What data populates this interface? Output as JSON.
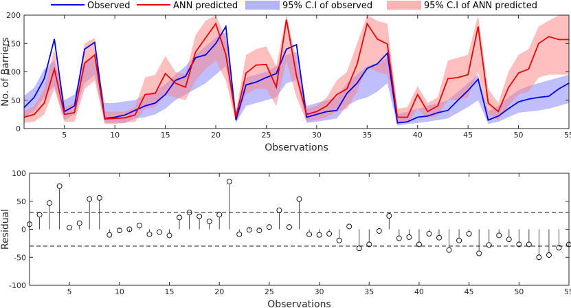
{
  "chart_data": [
    {
      "type": "line",
      "xlabel": "Observations",
      "ylabel": "No. of Barriers",
      "xlim": [
        1,
        55
      ],
      "ylim": [
        0,
        200
      ],
      "xticks": [
        5,
        10,
        15,
        20,
        25,
        30,
        35,
        40,
        45,
        50,
        55
      ],
      "yticks": [
        0,
        50,
        100,
        150,
        200
      ],
      "legend_position": "top",
      "x": [
        1,
        2,
        3,
        4,
        5,
        6,
        7,
        8,
        9,
        10,
        11,
        12,
        13,
        14,
        15,
        16,
        17,
        18,
        19,
        20,
        21,
        22,
        23,
        24,
        25,
        26,
        27,
        28,
        29,
        30,
        31,
        32,
        33,
        34,
        35,
        36,
        37,
        38,
        39,
        40,
        41,
        42,
        43,
        44,
        45,
        46,
        47,
        48,
        49,
        50,
        51,
        52,
        53,
        54,
        55
      ],
      "series": [
        {
          "name": "Observed",
          "color": "#0000ee",
          "values": [
            37,
            55,
            88,
            158,
            30,
            40,
            140,
            152,
            18,
            20,
            24,
            32,
            40,
            45,
            60,
            85,
            92,
            125,
            130,
            150,
            180,
            15,
            77,
            82,
            90,
            97,
            140,
            148,
            20,
            25,
            30,
            32,
            62,
            80,
            106,
            114,
            133,
            10,
            12,
            20,
            22,
            28,
            32,
            50,
            67,
            87,
            15,
            22,
            35,
            47,
            52,
            55,
            57,
            70,
            80
          ]
        },
        {
          "name": "ANN predicted",
          "color": "#ee0000",
          "values": [
            20,
            25,
            45,
            105,
            25,
            28,
            115,
            130,
            17,
            18,
            19,
            24,
            60,
            62,
            97,
            80,
            73,
            135,
            160,
            185,
            130,
            20,
            98,
            112,
            113,
            73,
            192,
            93,
            25,
            30,
            40,
            60,
            70,
            113,
            185,
            158,
            149,
            20,
            20,
            60,
            30,
            40,
            88,
            90,
            95,
            180,
            45,
            30,
            72,
            98,
            105,
            150,
            162,
            157,
            157
          ]
        },
        {
          "name": "95% C.I of observed",
          "color": "#8080ff",
          "lower": [
            20,
            30,
            55,
            75,
            15,
            25,
            80,
            95,
            10,
            10,
            10,
            18,
            20,
            25,
            35,
            50,
            60,
            70,
            80,
            95,
            110,
            10,
            40,
            45,
            50,
            55,
            80,
            85,
            10,
            12,
            15,
            18,
            40,
            50,
            55,
            65,
            80,
            5,
            8,
            10,
            12,
            15,
            18,
            28,
            38,
            50,
            8,
            12,
            20,
            28,
            30,
            32,
            35,
            40,
            45
          ],
          "upper": [
            58,
            72,
            105,
            120,
            50,
            60,
            120,
            128,
            45,
            45,
            48,
            50,
            60,
            65,
            78,
            95,
            110,
            130,
            145,
            160,
            170,
            30,
            90,
            95,
            100,
            110,
            130,
            135,
            40,
            45,
            50,
            55,
            80,
            95,
            110,
            115,
            125,
            25,
            30,
            35,
            40,
            45,
            50,
            65,
            80,
            95,
            30,
            40,
            55,
            68,
            75,
            80,
            85,
            90,
            95
          ]
        },
        {
          "name": "95% C.I of ANN predicted",
          "color": "#ff8080",
          "lower": [
            10,
            12,
            25,
            70,
            12,
            12,
            70,
            85,
            8,
            8,
            10,
            12,
            35,
            38,
            60,
            55,
            50,
            85,
            105,
            120,
            85,
            10,
            60,
            70,
            70,
            40,
            120,
            55,
            12,
            15,
            20,
            30,
            35,
            65,
            110,
            100,
            95,
            10,
            10,
            35,
            18,
            22,
            50,
            50,
            55,
            100,
            25,
            15,
            40,
            60,
            65,
            90,
            95,
            95,
            95
          ],
          "upper": [
            30,
            40,
            70,
            140,
            38,
            45,
            150,
            160,
            30,
            30,
            30,
            38,
            90,
            95,
            128,
            100,
            95,
            165,
            190,
            200,
            160,
            30,
            130,
            140,
            145,
            110,
            200,
            120,
            35,
            40,
            55,
            85,
            100,
            150,
            200,
            190,
            185,
            35,
            38,
            75,
            45,
            55,
            120,
            125,
            130,
            200,
            70,
            45,
            100,
            130,
            140,
            180,
            190,
            200,
            200
          ]
        }
      ]
    },
    {
      "type": "scatter",
      "xlabel": "Observations",
      "ylabel": "Residual",
      "xlim": [
        1,
        55
      ],
      "ylim": [
        -100,
        100
      ],
      "xticks": [
        5,
        10,
        15,
        20,
        25,
        30,
        35,
        40,
        45,
        50,
        55
      ],
      "yticks": [
        -100,
        -50,
        0,
        50,
        100
      ],
      "reference_lines": [
        30,
        -30
      ],
      "x": [
        1,
        2,
        3,
        4,
        5,
        6,
        7,
        8,
        9,
        10,
        11,
        12,
        13,
        14,
        15,
        16,
        17,
        18,
        19,
        20,
        21,
        22,
        23,
        24,
        25,
        26,
        27,
        28,
        29,
        30,
        31,
        32,
        33,
        34,
        35,
        36,
        37,
        38,
        39,
        40,
        41,
        42,
        43,
        44,
        45,
        46,
        47,
        48,
        49,
        50,
        51,
        52,
        53,
        54,
        55
      ],
      "values": [
        9,
        26,
        47,
        77,
        3,
        11,
        54,
        56,
        -10,
        -2,
        0,
        7,
        -9,
        -5,
        -11,
        21,
        30,
        23,
        14,
        26,
        85,
        -9,
        -1,
        -2,
        4,
        34,
        4,
        54,
        -9,
        -10,
        -8,
        -20,
        5,
        -34,
        -27,
        -3,
        24,
        -16,
        -14,
        -27,
        -8,
        -15,
        -37,
        -20,
        -8,
        -43,
        -28,
        -11,
        -18,
        -27,
        -27,
        -50,
        -46,
        -33,
        -27
      ]
    }
  ]
}
